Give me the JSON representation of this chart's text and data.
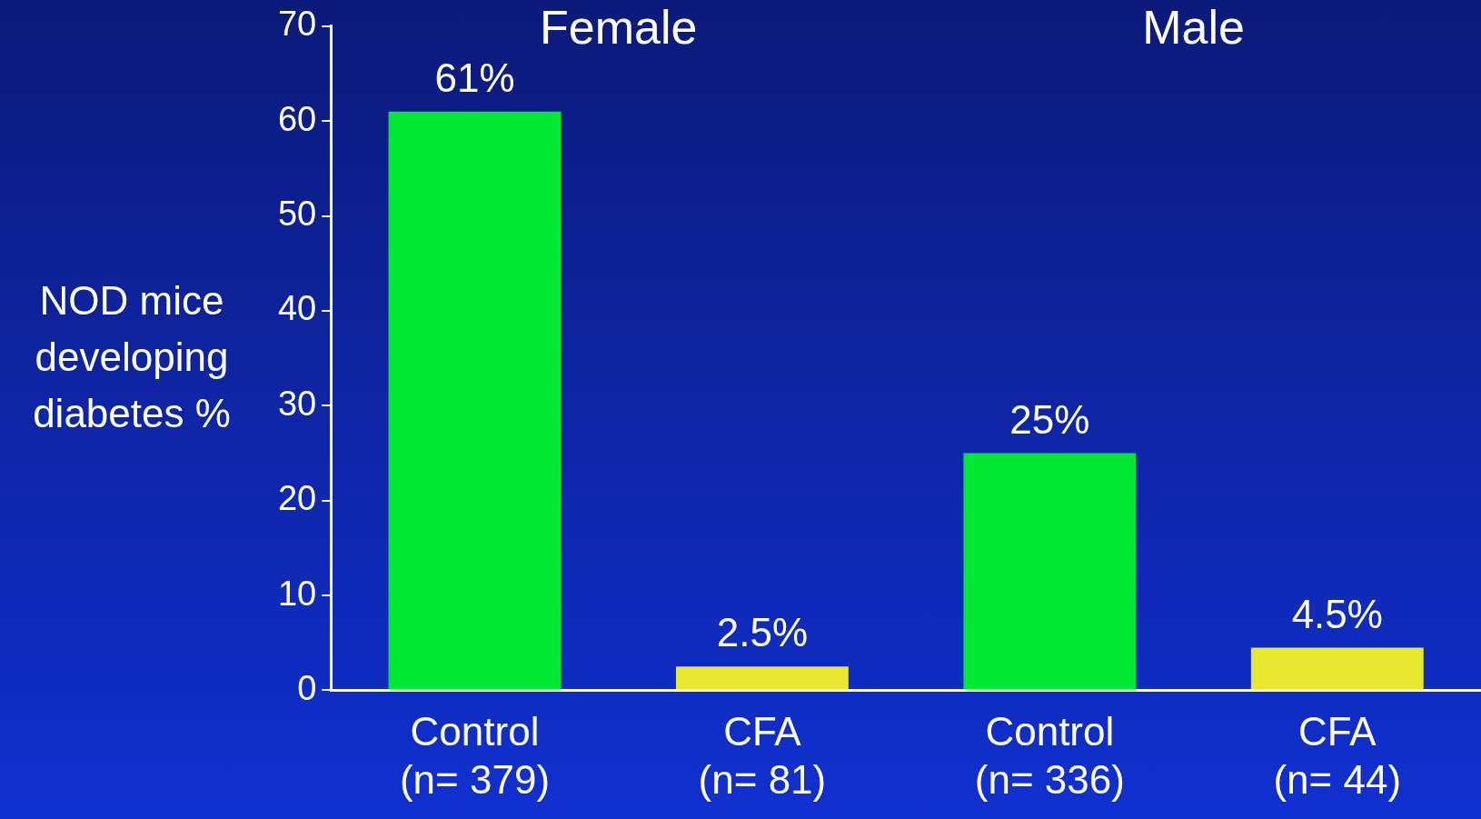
{
  "chart_data": {
    "type": "bar",
    "ylabel": "NOD mice developing diabetes %",
    "categories": [
      "Control\n(n= 379)",
      "CFA\n(n= 81)",
      "Control\n(n= 336)",
      "CFA\n(n= 44)"
    ],
    "values": [
      61,
      2.5,
      25,
      4.5
    ],
    "colors": [
      "#00e833",
      "#e8e830",
      "#00e833",
      "#e8e830"
    ],
    "value_labels": [
      "61%",
      "2.5%",
      "25%",
      "4.5%"
    ],
    "ylim": [
      0,
      70
    ],
    "yticks": [
      0,
      10,
      20,
      30,
      40,
      50,
      60,
      70
    ],
    "annotations": [
      "Female",
      "Male"
    ]
  }
}
